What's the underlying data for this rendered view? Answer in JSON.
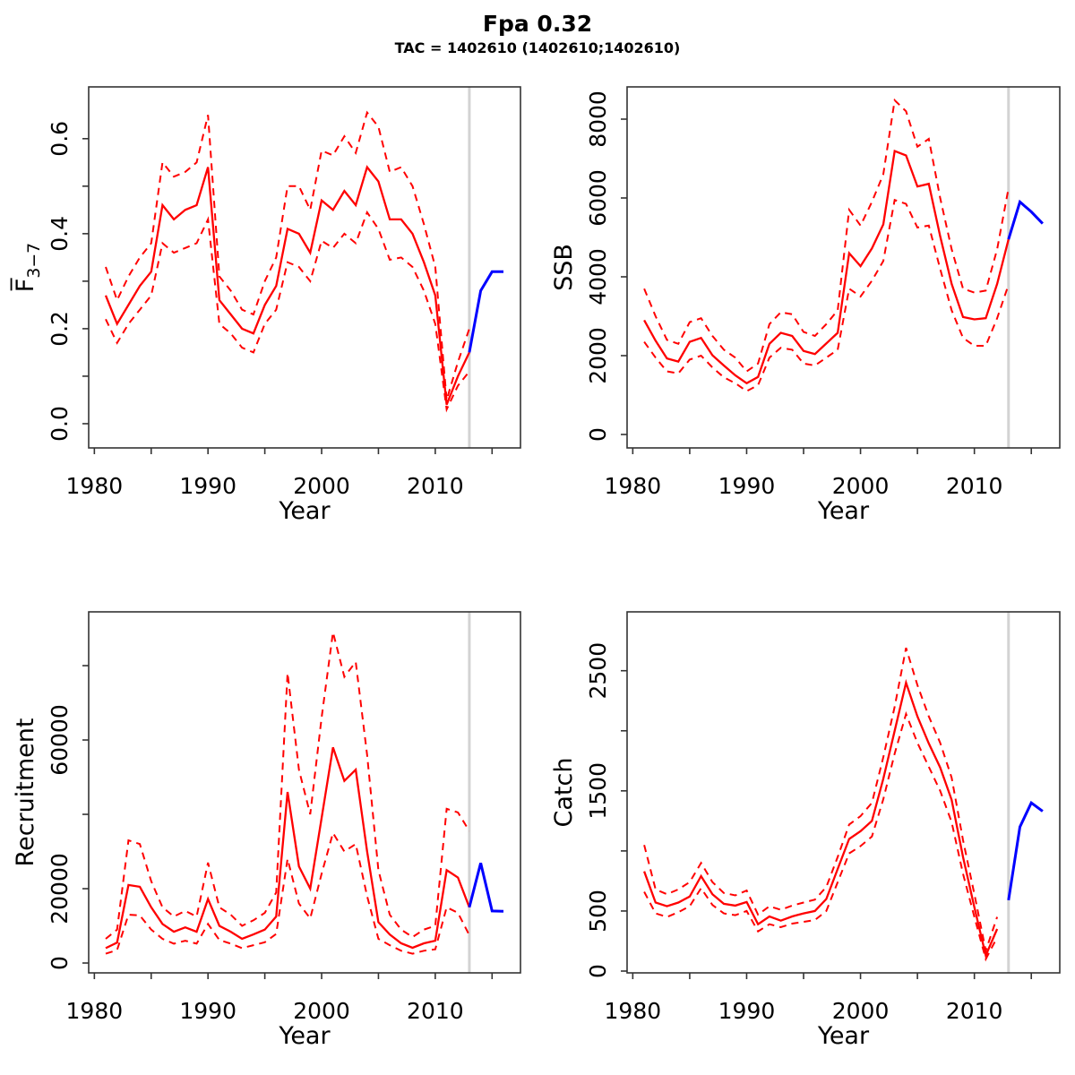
{
  "title": "Fpa 0.32",
  "subtitle": "TAC = 1402610 (1402610;1402610)",
  "colors": {
    "estimate": "#FF0000",
    "forecast": "#0000FF",
    "divider": "#D3D3D3",
    "axis": "#333333",
    "text": "#000000"
  },
  "chart_data": [
    {
      "id": "fbar",
      "type": "line",
      "ylabel": "F̅",
      "ylabel_sub": "3−7",
      "xlabel": "Year",
      "xlim": [
        1979.5,
        2017.5
      ],
      "ylim": [
        -0.051,
        0.709
      ],
      "grid": false,
      "legend": "none",
      "divider_x": 2013,
      "xticks": [
        1980,
        1985,
        1990,
        1995,
        2000,
        2005,
        2010,
        2015
      ],
      "xtick_labels": [
        "1980",
        "",
        "1990",
        "",
        "2000",
        "",
        "2010",
        ""
      ],
      "yticks": [
        0,
        0.1,
        0.2,
        0.3,
        0.4,
        0.5,
        0.6
      ],
      "ytick_labels": [
        "0.0",
        "",
        "0.2",
        "",
        "0.4",
        "",
        "0.6"
      ],
      "series": [
        {
          "name": "estimate",
          "role": "estimate",
          "dash": false,
          "x_start": 1981,
          "values": [
            0.27,
            0.21,
            0.25,
            0.29,
            0.32,
            0.46,
            0.43,
            0.45,
            0.46,
            0.54,
            0.26,
            0.23,
            0.2,
            0.19,
            0.25,
            0.29,
            0.41,
            0.4,
            0.36,
            0.47,
            0.45,
            0.49,
            0.46,
            0.54,
            0.51,
            0.43,
            0.43,
            0.4,
            0.34,
            0.27,
            0.04,
            0.1,
            0.15
          ]
        },
        {
          "name": "ci-upper",
          "role": "estimate",
          "dash": true,
          "x_start": 1981,
          "values": [
            0.33,
            0.26,
            0.31,
            0.35,
            0.38,
            0.55,
            0.52,
            0.53,
            0.55,
            0.65,
            0.31,
            0.28,
            0.24,
            0.23,
            0.3,
            0.35,
            0.5,
            0.5,
            0.45,
            0.575,
            0.565,
            0.605,
            0.57,
            0.655,
            0.625,
            0.53,
            0.54,
            0.5,
            0.42,
            0.33,
            0.05,
            0.13,
            0.2
          ]
        },
        {
          "name": "ci-lower",
          "role": "estimate",
          "dash": true,
          "x_start": 1981,
          "values": [
            0.22,
            0.17,
            0.21,
            0.24,
            0.27,
            0.38,
            0.36,
            0.37,
            0.38,
            0.43,
            0.21,
            0.19,
            0.16,
            0.15,
            0.21,
            0.24,
            0.34,
            0.33,
            0.3,
            0.385,
            0.37,
            0.4,
            0.38,
            0.445,
            0.41,
            0.345,
            0.35,
            0.33,
            0.28,
            0.21,
            0.03,
            0.08,
            0.11
          ]
        },
        {
          "name": "forecast",
          "role": "forecast",
          "dash": false,
          "x_start": 2013,
          "values": [
            0.15,
            0.28,
            0.32,
            0.32
          ]
        }
      ]
    },
    {
      "id": "ssb",
      "type": "line",
      "ylabel": "SSB",
      "ylabel_sub": "",
      "xlabel": "Year",
      "xlim": [
        1979.5,
        2017.5
      ],
      "ylim": [
        -341,
        8818
      ],
      "grid": false,
      "legend": "none",
      "divider_x": 2013,
      "xticks": [
        1980,
        1985,
        1990,
        1995,
        2000,
        2005,
        2010,
        2015
      ],
      "xtick_labels": [
        "1980",
        "",
        "1990",
        "",
        "2000",
        "",
        "2010",
        ""
      ],
      "yticks": [
        0,
        2000,
        4000,
        6000,
        8000
      ],
      "ytick_labels": [
        "0",
        "2000",
        "4000",
        "6000",
        "8000"
      ],
      "series": [
        {
          "name": "estimate",
          "role": "estimate",
          "dash": false,
          "x_start": 1981,
          "values": [
            2900,
            2380,
            1930,
            1850,
            2350,
            2450,
            2010,
            1750,
            1500,
            1300,
            1460,
            2300,
            2580,
            2500,
            2120,
            2040,
            2310,
            2580,
            4600,
            4270,
            4720,
            5330,
            7190,
            7080,
            6290,
            6360,
            5030,
            3820,
            2980,
            2920,
            2950,
            3820,
            4950
          ]
        },
        {
          "name": "ci-upper",
          "role": "estimate",
          "dash": true,
          "x_start": 1981,
          "values": [
            3700,
            3000,
            2400,
            2300,
            2850,
            2950,
            2500,
            2150,
            1950,
            1600,
            1800,
            2800,
            3100,
            3050,
            2600,
            2500,
            2800,
            3150,
            5700,
            5300,
            5900,
            6600,
            8480,
            8200,
            7300,
            7500,
            6000,
            4700,
            3700,
            3600,
            3650,
            4700,
            6250
          ]
        },
        {
          "name": "ci-lower",
          "role": "estimate",
          "dash": true,
          "x_start": 1981,
          "values": [
            2350,
            1950,
            1600,
            1550,
            1900,
            2000,
            1700,
            1450,
            1300,
            1100,
            1250,
            1950,
            2200,
            2150,
            1800,
            1750,
            1950,
            2150,
            3700,
            3500,
            3900,
            4400,
            5950,
            5850,
            5250,
            5300,
            4200,
            3150,
            2450,
            2250,
            2250,
            2950,
            3800
          ]
        },
        {
          "name": "forecast",
          "role": "forecast",
          "dash": false,
          "x_start": 2013,
          "values": [
            4950,
            5900,
            5650,
            5350
          ]
        }
      ]
    },
    {
      "id": "recruitment",
      "type": "line",
      "ylabel": "Recruitment",
      "ylabel_sub": "",
      "xlabel": "Year",
      "xlim": [
        1979.5,
        2017.5
      ],
      "ylim": [
        -2650,
        94470
      ],
      "grid": false,
      "legend": "none",
      "divider_x": 2013,
      "xticks": [
        1980,
        1985,
        1990,
        1995,
        2000,
        2005,
        2010,
        2015
      ],
      "xtick_labels": [
        "1980",
        "",
        "1990",
        "",
        "2000",
        "",
        "2010",
        ""
      ],
      "yticks": [
        0,
        20000,
        40000,
        60000,
        80000
      ],
      "ytick_labels": [
        "0",
        "20000",
        "",
        "60000",
        ""
      ],
      "series": [
        {
          "name": "estimate",
          "role": "estimate",
          "dash": false,
          "x_start": 1981,
          "values": [
            4000,
            5500,
            21000,
            20500,
            15000,
            10500,
            8400,
            9600,
            8400,
            17200,
            10000,
            8400,
            6500,
            7700,
            9000,
            12500,
            46000,
            26000,
            20000,
            39000,
            58000,
            49000,
            52000,
            30000,
            11000,
            7700,
            5300,
            4100,
            5300,
            6000,
            25000,
            23000,
            15000
          ]
        },
        {
          "name": "ci-upper",
          "role": "estimate",
          "dash": true,
          "x_start": 1981,
          "values": [
            6500,
            9000,
            33000,
            32000,
            22000,
            15000,
            12500,
            14000,
            12500,
            27000,
            15000,
            13000,
            10000,
            11500,
            13500,
            19000,
            78000,
            52000,
            40000,
            66000,
            89000,
            77000,
            81000,
            56000,
            25000,
            13000,
            9000,
            7000,
            9000,
            10000,
            41500,
            40500,
            35500
          ]
        },
        {
          "name": "ci-lower",
          "role": "estimate",
          "dash": true,
          "x_start": 1981,
          "values": [
            2500,
            3500,
            13000,
            12800,
            9000,
            6500,
            5200,
            6000,
            5200,
            10500,
            6200,
            5200,
            4000,
            4800,
            5600,
            7800,
            28000,
            16000,
            12000,
            24000,
            35000,
            30000,
            32000,
            18000,
            6500,
            4800,
            3300,
            2500,
            3300,
            3700,
            15000,
            13500,
            7500
          ]
        },
        {
          "name": "forecast",
          "role": "forecast",
          "dash": false,
          "x_start": 2013,
          "values": [
            15000,
            26900,
            14000,
            13900
          ]
        }
      ]
    },
    {
      "id": "catch",
      "type": "line",
      "ylabel": "Catch",
      "ylabel_sub": "",
      "xlabel": "Year",
      "xlim": [
        1979.5,
        2017.5
      ],
      "ylim": [
        -15,
        2990
      ],
      "grid": false,
      "legend": "none",
      "divider_x": 2013,
      "xticks": [
        1980,
        1985,
        1990,
        1995,
        2000,
        2005,
        2010,
        2015
      ],
      "xtick_labels": [
        "1980",
        "",
        "1990",
        "",
        "2000",
        "",
        "2010",
        ""
      ],
      "yticks": [
        0,
        500,
        1000,
        1500,
        2000,
        2500
      ],
      "ytick_labels": [
        "0",
        "500",
        "",
        "1500",
        "",
        "2500"
      ],
      "series": [
        {
          "name": "estimate",
          "role": "estimate",
          "dash": false,
          "x_start": 1981,
          "values": [
            830,
            570,
            540,
            570,
            620,
            790,
            640,
            560,
            545,
            575,
            390,
            455,
            420,
            455,
            480,
            500,
            600,
            850,
            1100,
            1165,
            1250,
            1600,
            2000,
            2400,
            2120,
            1895,
            1695,
            1425,
            950,
            530,
            130,
            350
          ]
        },
        {
          "name": "ci-upper",
          "role": "estimate",
          "dash": true,
          "x_start": 1981,
          "values": [
            1050,
            680,
            640,
            680,
            740,
            900,
            740,
            650,
            630,
            670,
            470,
            540,
            510,
            545,
            570,
            595,
            700,
            950,
            1220,
            1290,
            1400,
            1780,
            2200,
            2690,
            2380,
            2120,
            1900,
            1610,
            1090,
            640,
            170,
            450
          ]
        },
        {
          "name": "ci-lower",
          "role": "estimate",
          "dash": true,
          "x_start": 1981,
          "values": [
            660,
            480,
            450,
            490,
            540,
            690,
            550,
            480,
            465,
            500,
            330,
            390,
            365,
            395,
            410,
            425,
            500,
            740,
            980,
            1040,
            1120,
            1430,
            1810,
            2140,
            1900,
            1700,
            1500,
            1240,
            810,
            450,
            100,
            280
          ]
        },
        {
          "name": "forecast",
          "role": "forecast",
          "dash": false,
          "x_start": 2013,
          "values": [
            590,
            1200,
            1400,
            1330
          ]
        }
      ]
    }
  ]
}
